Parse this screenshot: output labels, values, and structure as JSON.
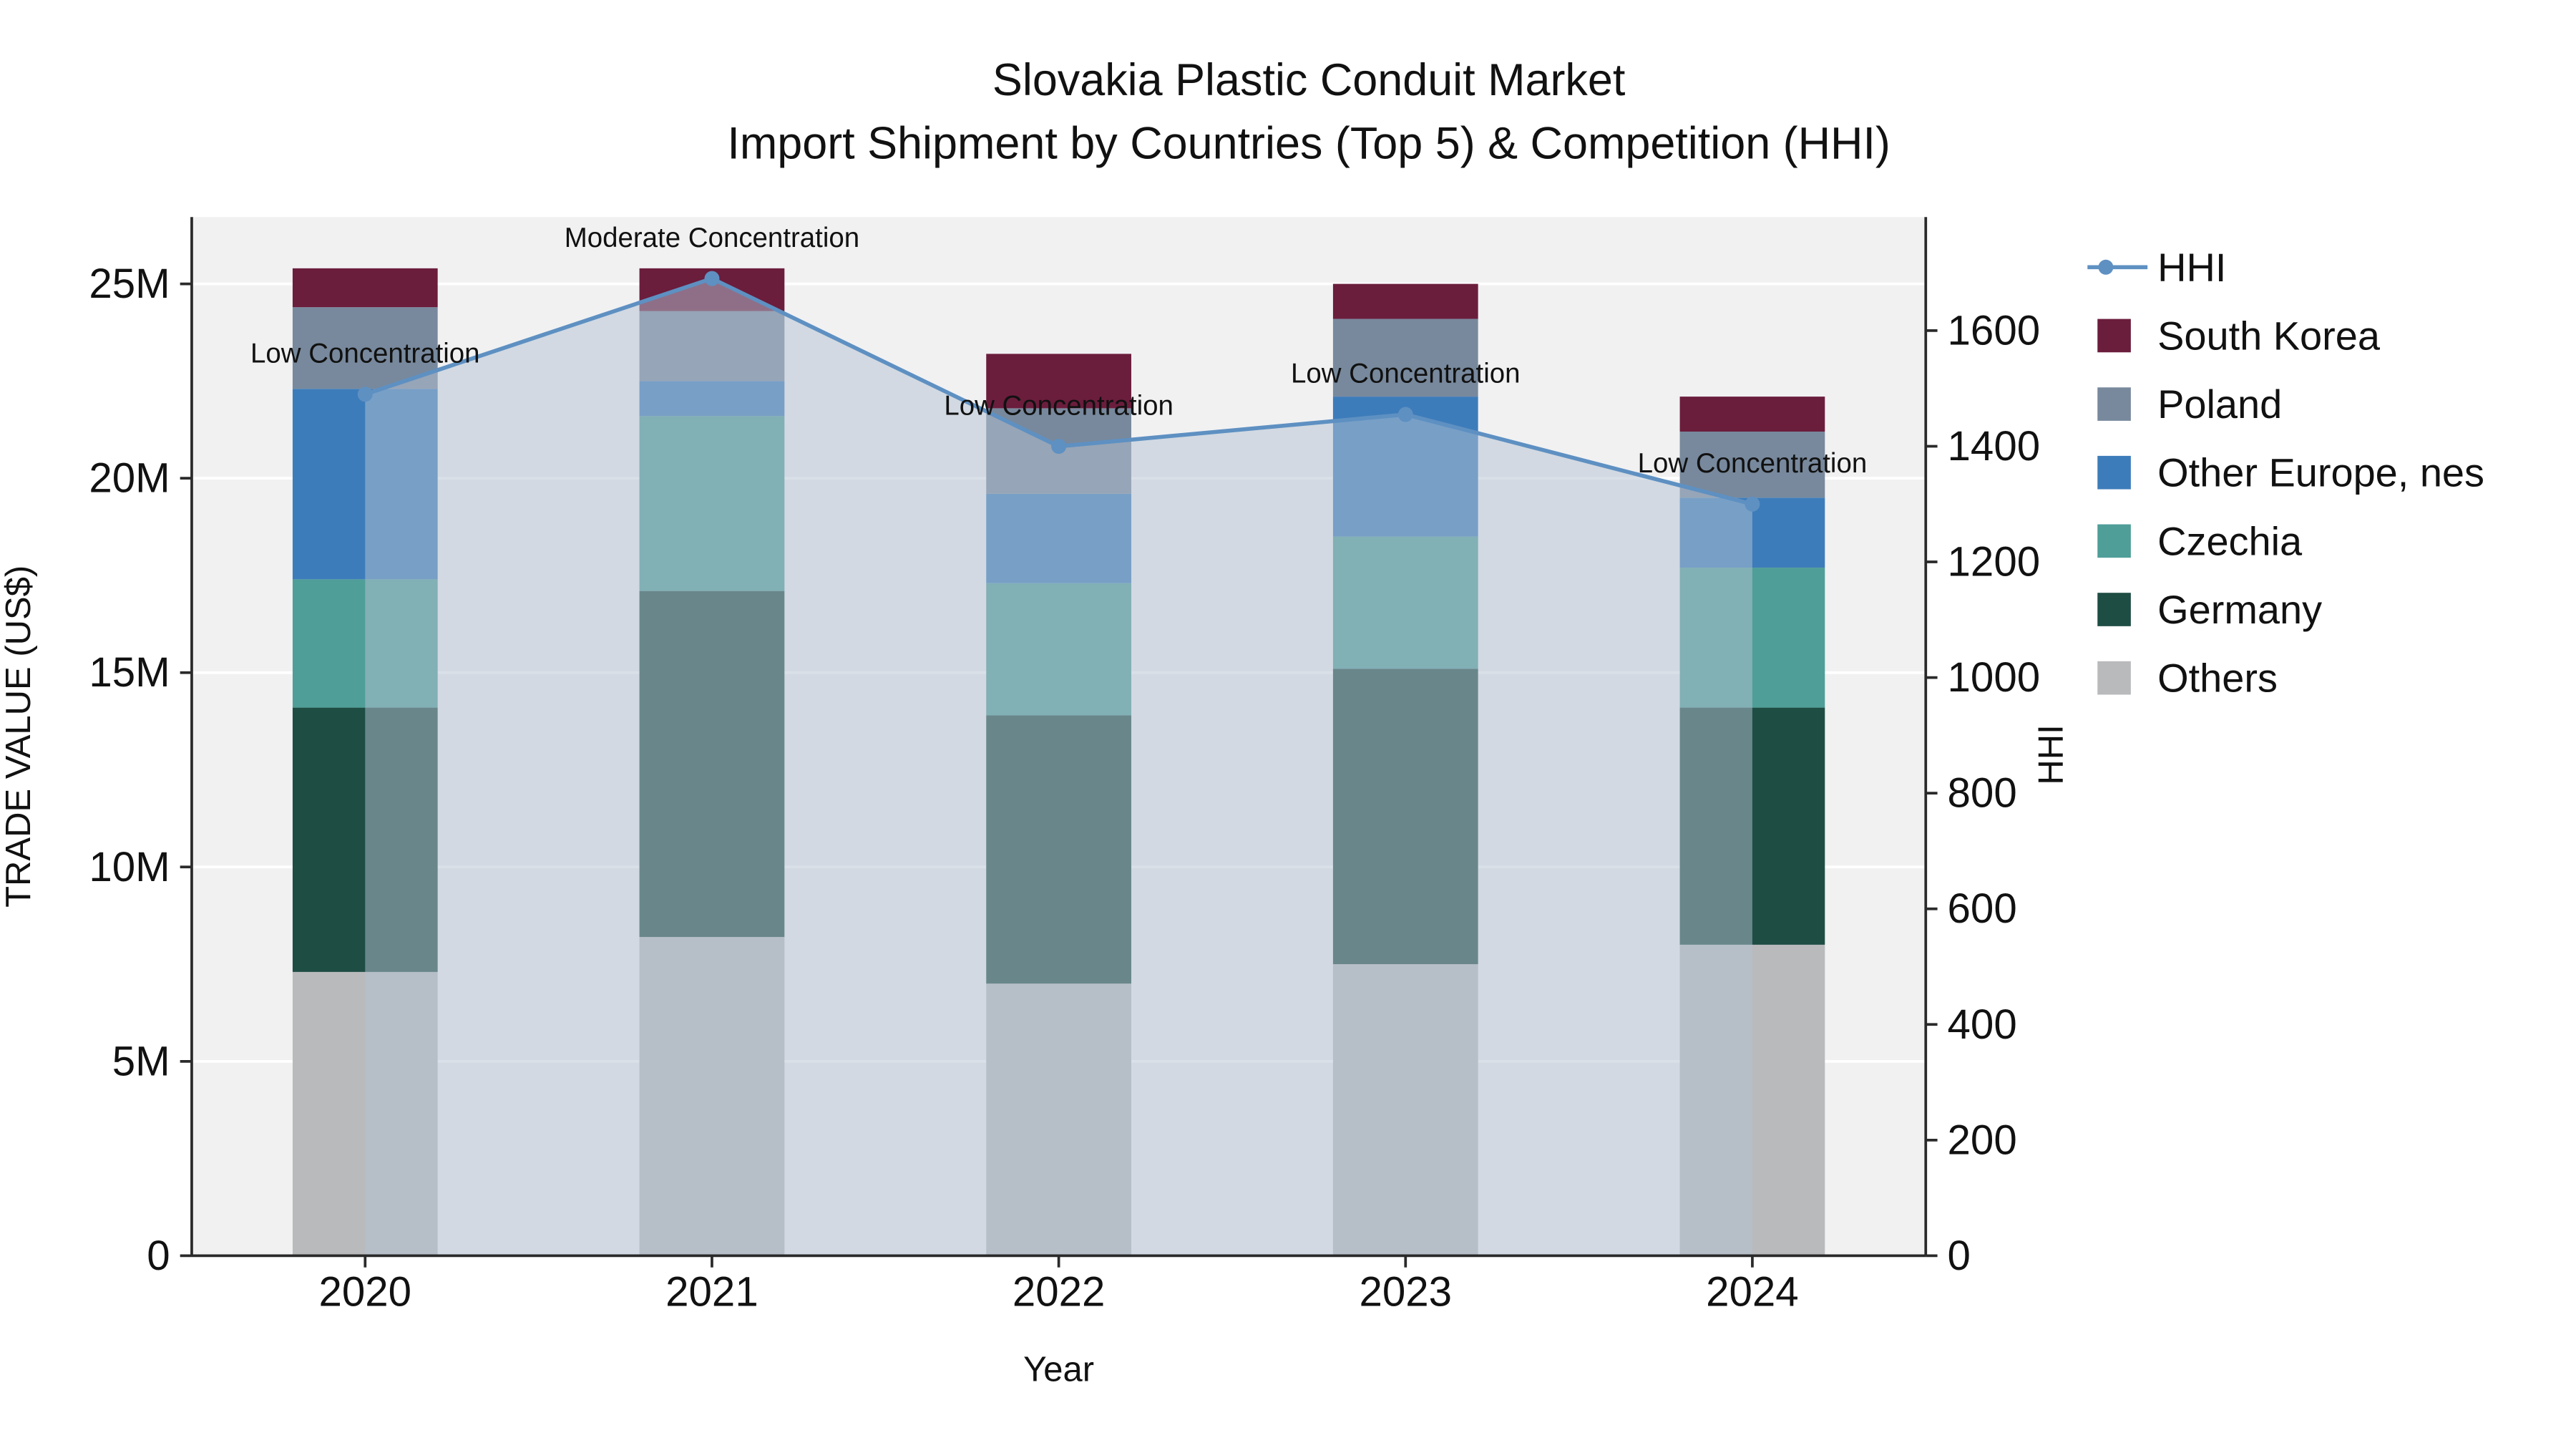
{
  "title": {
    "line1": "Slovakia Plastic Conduit Market",
    "line2": "Import Shipment by Countries (Top 5) & Competition (HHI)"
  },
  "chart_data": {
    "type": "bar",
    "subtype": "stacked-bars-with-hhi-line",
    "title": "Slovakia Plastic Conduit Market",
    "subtitle": "Import Shipment by Countries (Top 5) & Competition (HHI)",
    "xlabel": "Year",
    "ylabel_left": "TRADE VALUE (US$)",
    "ylabel_right": "HHI",
    "categories": [
      "2020",
      "2021",
      "2022",
      "2023",
      "2024"
    ],
    "value_unit": "M US$",
    "series": [
      {
        "name": "Others",
        "color": "#b9babc",
        "values": [
          7.3,
          8.2,
          7.0,
          7.5,
          8.0
        ]
      },
      {
        "name": "Germany",
        "color": "#1e4d44",
        "values": [
          6.8,
          8.9,
          6.9,
          7.6,
          6.1
        ]
      },
      {
        "name": "Czechia",
        "color": "#4f9e98",
        "values": [
          3.3,
          4.5,
          3.4,
          3.4,
          3.6
        ]
      },
      {
        "name": "Other Europe, nes",
        "color": "#3d7cba",
        "values": [
          4.9,
          0.9,
          2.3,
          3.6,
          1.8
        ]
      },
      {
        "name": "Poland",
        "color": "#78899d",
        "values": [
          2.1,
          1.8,
          2.2,
          2.0,
          1.7
        ]
      },
      {
        "name": "South Korea",
        "color": "#6b1d3c",
        "values": [
          1.0,
          1.1,
          1.4,
          0.9,
          0.9
        ]
      }
    ],
    "line_series": {
      "name": "HHI",
      "color": "#5e90c2",
      "values": [
        1490,
        1690,
        1400,
        1455,
        1300
      ],
      "area_fill": "#b4c2d2",
      "area_opacity": 0.5
    },
    "annotations": [
      "Low Concentration",
      "Moderate Concentration",
      "Low Concentration",
      "Low Concentration",
      "Low Concentration"
    ],
    "y_left_ticks": {
      "labels": [
        "0",
        "5M",
        "10M",
        "15M",
        "20M",
        "25M"
      ],
      "values": [
        0,
        5,
        10,
        15,
        20,
        25
      ]
    },
    "y_right_ticks": {
      "labels": [
        "0",
        "200",
        "400",
        "600",
        "800",
        "1000",
        "1200",
        "1400",
        "1600"
      ],
      "values": [
        0,
        200,
        400,
        600,
        800,
        1000,
        1200,
        1400,
        1600
      ]
    },
    "axis_ranges": {
      "left_max_m": 26.7,
      "right_max": 1795
    },
    "grid": "horizontal-white-on-lightgray",
    "legend_position": "right",
    "legend": [
      "HHI",
      "South Korea",
      "Poland",
      "Other Europe, nes",
      "Czechia",
      "Germany",
      "Others"
    ],
    "plot_bg": "#f1f1f2",
    "grid_color": "#ffffff",
    "axis_color": "#2a2a2a"
  }
}
